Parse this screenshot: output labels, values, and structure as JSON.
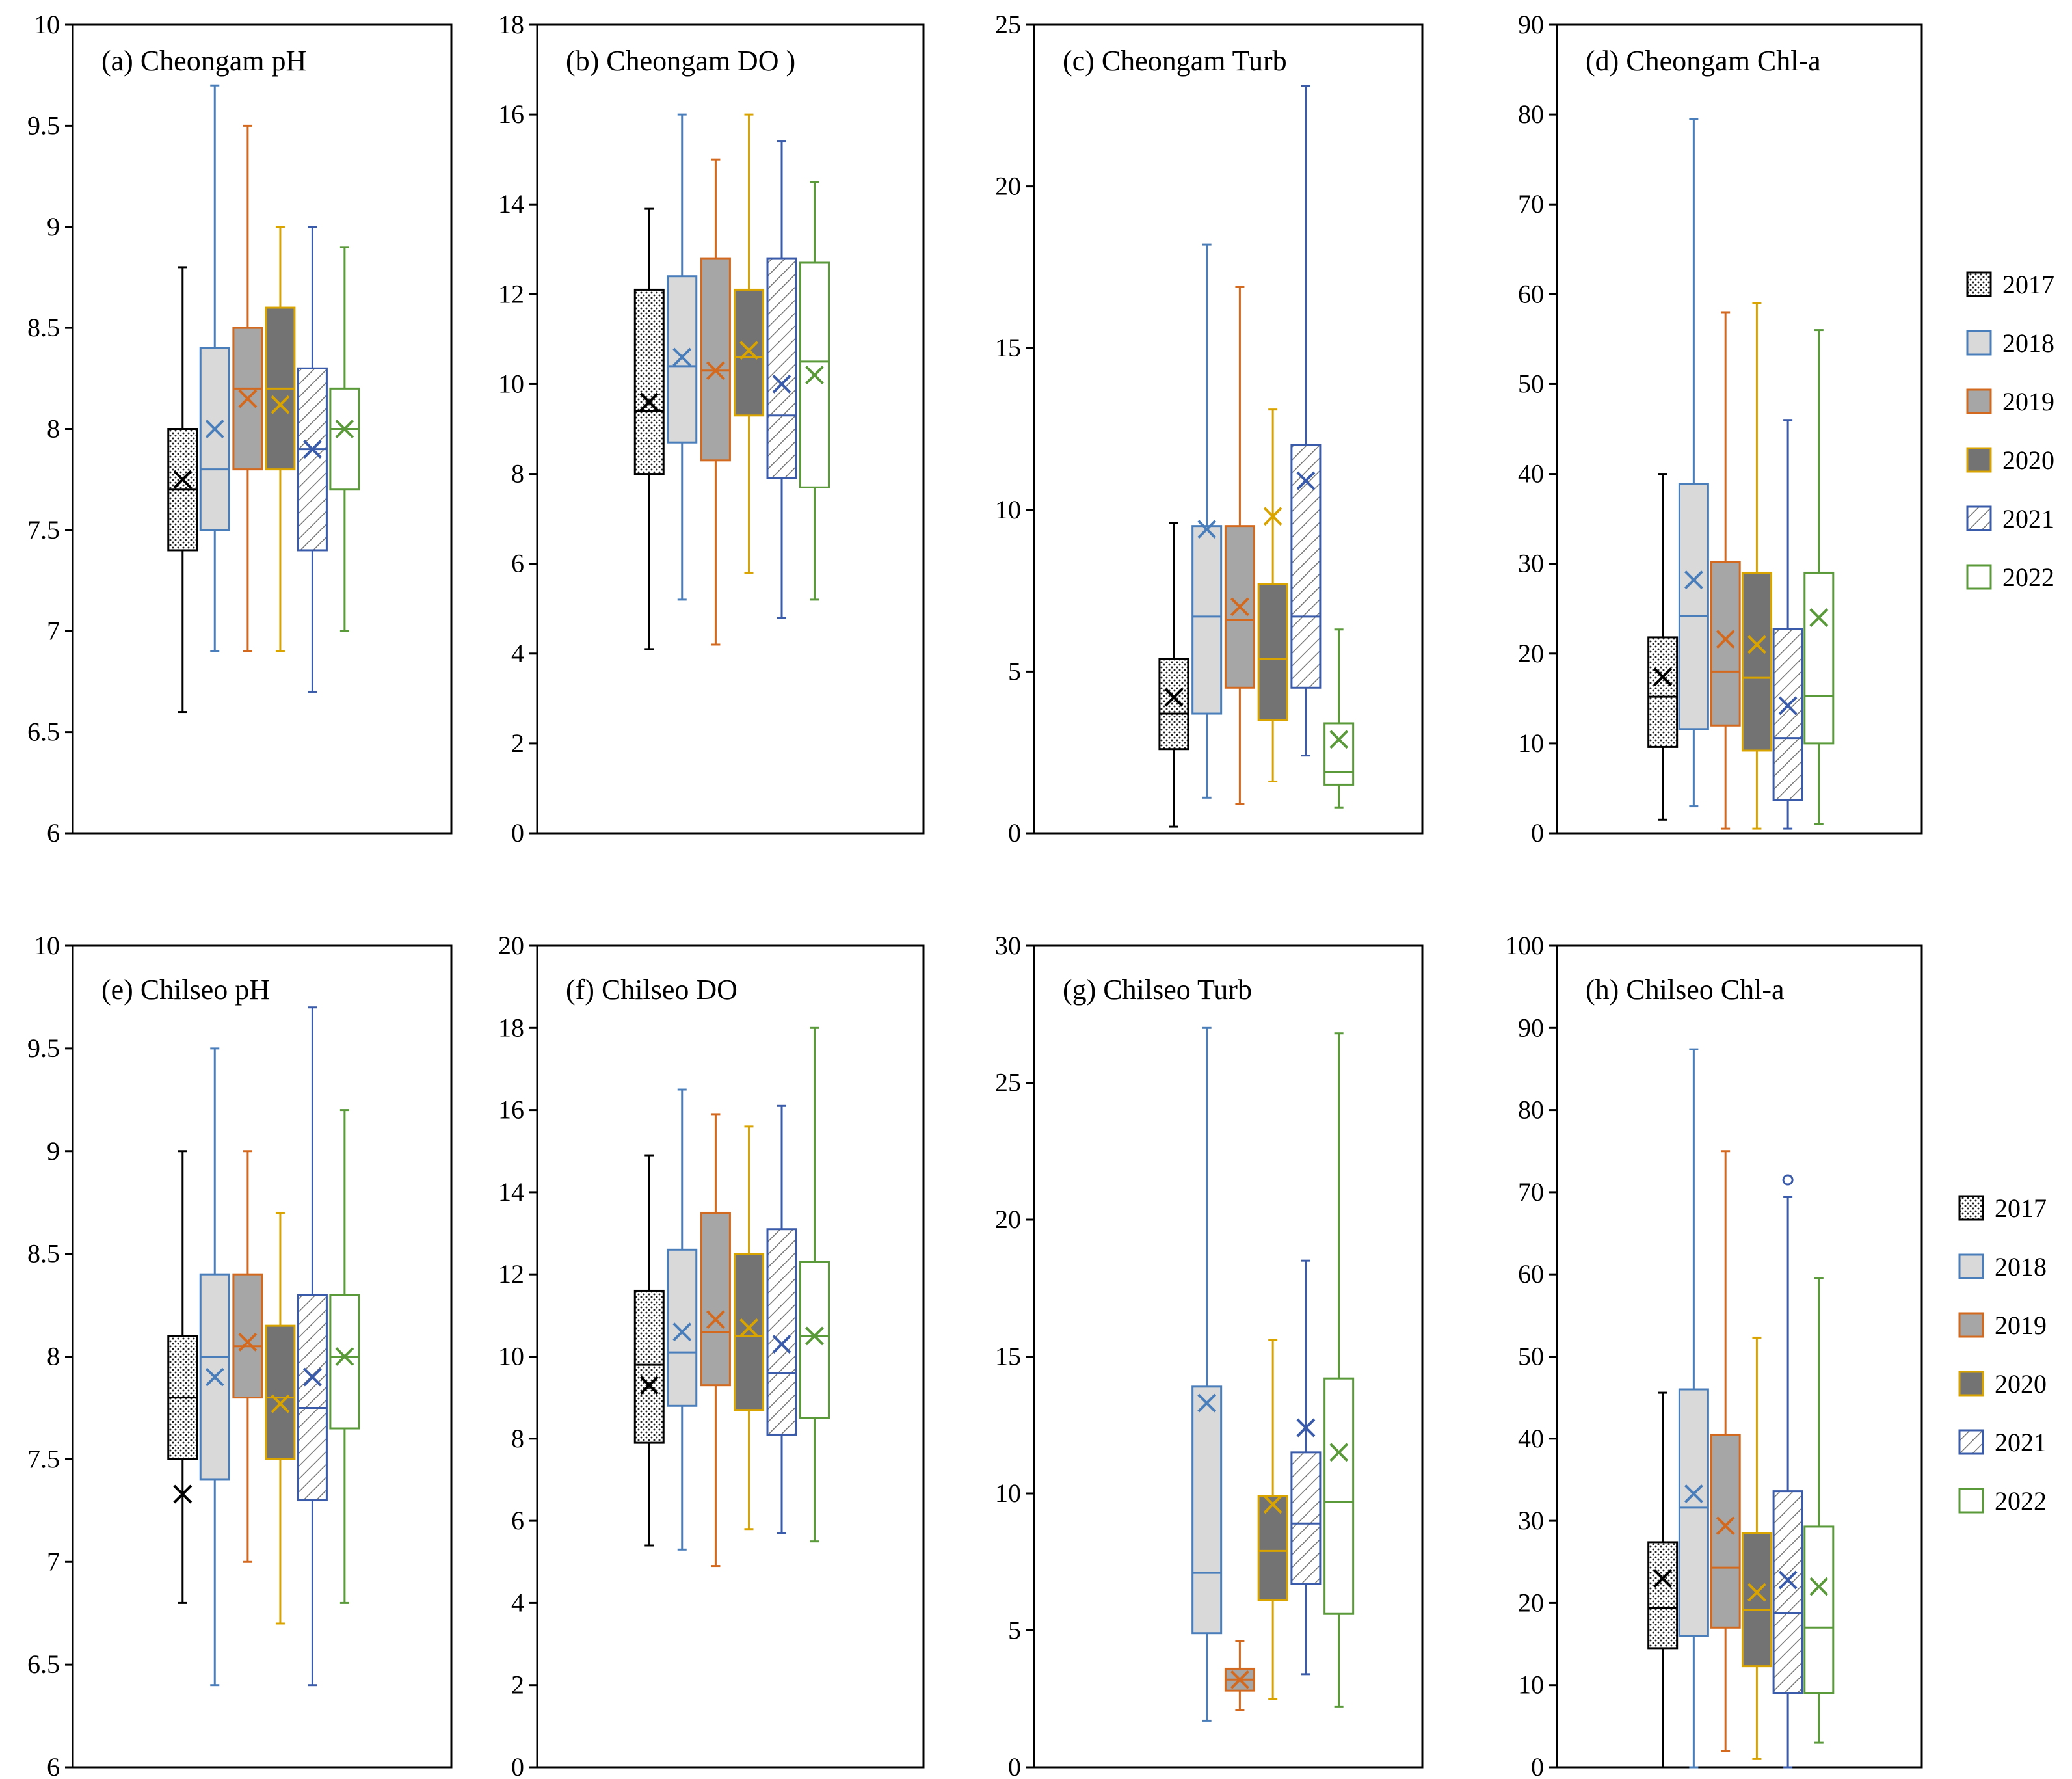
{
  "legend_years": [
    "2017",
    "2018",
    "2019",
    "2020",
    "2021",
    "2022"
  ],
  "series_colors": {
    "2017": "#000000",
    "2018": "#4A7EBB",
    "2019": "#D2691E",
    "2020": "#D9A300",
    "2021": "#3A5BA9",
    "2022": "#5A9A3A"
  },
  "series_fills": {
    "2017": "dots-dense",
    "2018": "#D9D9D9",
    "2019": "#A6A6A6",
    "2020": "#737373",
    "2021": "diagonal-hatch",
    "2022": "#FFFFFF"
  },
  "chart_data": [
    {
      "id": "a",
      "type": "boxplot",
      "title": "(a) Cheongam pH",
      "ylim": [
        6,
        10
      ],
      "yticks": [
        "6",
        "6.5",
        "7",
        "7.5",
        "8",
        "8.5",
        "9",
        "9.5",
        "10"
      ],
      "series": [
        {
          "name": "2017",
          "min": 6.6,
          "q1": 7.4,
          "median": 7.7,
          "q3": 8.0,
          "max": 8.8,
          "mean": 7.75
        },
        {
          "name": "2018",
          "min": 6.9,
          "q1": 7.5,
          "median": 7.8,
          "q3": 8.4,
          "max": 9.7,
          "mean": 8.0
        },
        {
          "name": "2019",
          "min": 6.9,
          "q1": 7.8,
          "median": 8.2,
          "q3": 8.5,
          "max": 9.5,
          "mean": 8.15
        },
        {
          "name": "2020",
          "min": 6.9,
          "q1": 7.8,
          "median": 8.2,
          "q3": 8.6,
          "max": 9.0,
          "mean": 8.12
        },
        {
          "name": "2021",
          "min": 6.7,
          "q1": 7.4,
          "median": 7.9,
          "q3": 8.3,
          "max": 9.0,
          "mean": 7.9
        },
        {
          "name": "2022",
          "min": 7.0,
          "q1": 7.7,
          "median": 8.0,
          "q3": 8.2,
          "max": 8.9,
          "mean": 8.0
        }
      ]
    },
    {
      "id": "b",
      "type": "boxplot",
      "title": "(b) Cheongam DO )",
      "ylim": [
        0,
        18
      ],
      "yticks": [
        "0",
        "2",
        "4",
        "6",
        "8",
        "10",
        "12",
        "14",
        "16",
        "18"
      ],
      "series": [
        {
          "name": "2017",
          "min": 4.1,
          "q1": 8.0,
          "median": 9.4,
          "q3": 12.1,
          "max": 13.9,
          "mean": 9.6
        },
        {
          "name": "2018",
          "min": 5.2,
          "q1": 8.7,
          "median": 10.4,
          "q3": 12.4,
          "max": 16.0,
          "mean": 10.6
        },
        {
          "name": "2019",
          "min": 4.2,
          "q1": 8.3,
          "median": 10.3,
          "q3": 12.8,
          "max": 15.0,
          "mean": 10.3
        },
        {
          "name": "2020",
          "min": 5.8,
          "q1": 9.3,
          "median": 10.6,
          "q3": 12.1,
          "max": 16.0,
          "mean": 10.75
        },
        {
          "name": "2021",
          "min": 4.8,
          "q1": 7.9,
          "median": 9.3,
          "q3": 12.8,
          "max": 15.4,
          "mean": 10.0
        },
        {
          "name": "2022",
          "min": 5.2,
          "q1": 7.7,
          "median": 10.5,
          "q3": 12.7,
          "max": 14.5,
          "mean": 10.2
        }
      ]
    },
    {
      "id": "c",
      "type": "boxplot",
      "title": "(c) Cheongam Turb",
      "ylim": [
        0,
        25
      ],
      "yticks": [
        "0",
        "5",
        "10",
        "15",
        "20",
        "25"
      ],
      "series": [
        {
          "name": "2017",
          "min": 0.2,
          "q1": 2.6,
          "median": 3.7,
          "q3": 5.4,
          "max": 9.6,
          "mean": 4.2
        },
        {
          "name": "2018",
          "min": 1.1,
          "q1": 3.7,
          "median": 6.7,
          "q3": 9.5,
          "max": 18.2,
          "mean": 9.4
        },
        {
          "name": "2019",
          "min": 0.9,
          "q1": 4.5,
          "median": 6.6,
          "q3": 9.5,
          "max": 16.9,
          "mean": 7.0
        },
        {
          "name": "2020",
          "min": 1.6,
          "q1": 3.5,
          "median": 5.4,
          "q3": 7.7,
          "max": 13.1,
          "mean": 9.8
        },
        {
          "name": "2021",
          "min": 2.4,
          "q1": 4.5,
          "median": 6.7,
          "q3": 12.0,
          "max": 23.1,
          "mean": 10.9
        },
        {
          "name": "2022",
          "min": 0.8,
          "q1": 1.5,
          "median": 1.9,
          "q3": 3.4,
          "max": 6.3,
          "mean": 2.9
        }
      ]
    },
    {
      "id": "d",
      "type": "boxplot",
      "title": "(d) Cheongam Chl-a",
      "ylim": [
        0,
        90
      ],
      "yticks": [
        "0",
        "10",
        "20",
        "30",
        "40",
        "50",
        "60",
        "70",
        "80",
        "90"
      ],
      "series": [
        {
          "name": "2017",
          "min": 1.5,
          "q1": 9.6,
          "median": 15.2,
          "q3": 21.8,
          "max": 40.0,
          "mean": 17.4
        },
        {
          "name": "2018",
          "min": 3.0,
          "q1": 11.6,
          "median": 24.2,
          "q3": 38.9,
          "max": 79.5,
          "mean": 28.2
        },
        {
          "name": "2019",
          "min": 0.5,
          "q1": 12.0,
          "median": 18.0,
          "q3": 30.2,
          "max": 58.0,
          "mean": 21.6
        },
        {
          "name": "2020",
          "min": 0.5,
          "q1": 9.2,
          "median": 17.3,
          "q3": 29.0,
          "max": 59.0,
          "mean": 21.0
        },
        {
          "name": "2021",
          "min": 0.5,
          "q1": 3.7,
          "median": 10.6,
          "q3": 22.7,
          "max": 46.0,
          "mean": 14.2
        },
        {
          "name": "2022",
          "min": 1.0,
          "q1": 10.0,
          "median": 15.3,
          "q3": 29.0,
          "max": 56.0,
          "mean": 24.0
        }
      ]
    },
    {
      "id": "e",
      "type": "boxplot",
      "title": "(e) Chilseo pH",
      "ylim": [
        6,
        10
      ],
      "yticks": [
        "6",
        "6.5",
        "7",
        "7.5",
        "8",
        "8.5",
        "9",
        "9.5",
        "10"
      ],
      "series": [
        {
          "name": "2017",
          "min": 6.8,
          "q1": 7.5,
          "median": 7.8,
          "q3": 8.1,
          "max": 9.0,
          "mean": 7.33
        },
        {
          "name": "2018",
          "min": 6.4,
          "q1": 7.4,
          "median": 8.0,
          "q3": 8.4,
          "max": 9.5,
          "mean": 7.9
        },
        {
          "name": "2019",
          "min": 7.0,
          "q1": 7.8,
          "median": 8.05,
          "q3": 8.4,
          "max": 9.0,
          "mean": 8.07
        },
        {
          "name": "2020",
          "min": 6.7,
          "q1": 7.5,
          "median": 7.8,
          "q3": 8.15,
          "max": 8.7,
          "mean": 7.77
        },
        {
          "name": "2021",
          "min": 6.4,
          "q1": 7.3,
          "median": 7.75,
          "q3": 8.3,
          "max": 9.7,
          "mean": 7.9
        },
        {
          "name": "2022",
          "min": 6.8,
          "q1": 7.65,
          "median": 8.0,
          "q3": 8.3,
          "max": 9.2,
          "mean": 8.0
        }
      ]
    },
    {
      "id": "f",
      "type": "boxplot",
      "title": "(f) Chilseo DO",
      "ylim": [
        0,
        20
      ],
      "yticks": [
        "0",
        "2",
        "4",
        "6",
        "8",
        "10",
        "12",
        "14",
        "16",
        "18",
        "20"
      ],
      "series": [
        {
          "name": "2017",
          "min": 5.4,
          "q1": 7.9,
          "median": 9.8,
          "q3": 11.6,
          "max": 14.9,
          "mean": 9.3
        },
        {
          "name": "2018",
          "min": 5.3,
          "q1": 8.8,
          "median": 10.1,
          "q3": 12.6,
          "max": 16.5,
          "mean": 10.6
        },
        {
          "name": "2019",
          "min": 4.9,
          "q1": 9.3,
          "median": 10.6,
          "q3": 13.5,
          "max": 15.9,
          "mean": 10.9
        },
        {
          "name": "2020",
          "min": 5.8,
          "q1": 8.7,
          "median": 10.5,
          "q3": 12.5,
          "max": 15.6,
          "mean": 10.7
        },
        {
          "name": "2021",
          "min": 5.7,
          "q1": 8.1,
          "median": 9.6,
          "q3": 13.1,
          "max": 16.1,
          "mean": 10.3
        },
        {
          "name": "2022",
          "min": 5.5,
          "q1": 8.5,
          "median": 10.5,
          "q3": 12.3,
          "max": 18.0,
          "mean": 10.5
        }
      ]
    },
    {
      "id": "g",
      "type": "boxplot",
      "title": "(g) Chilseo Turb",
      "ylim": [
        0,
        30
      ],
      "yticks": [
        "0",
        "5",
        "10",
        "15",
        "20",
        "25",
        "30"
      ],
      "series": [
        {
          "name": "2017",
          "min": null,
          "q1": null,
          "median": null,
          "q3": null,
          "max": null,
          "mean": null
        },
        {
          "name": "2018",
          "min": 1.7,
          "q1": 4.9,
          "median": 7.1,
          "q3": 13.9,
          "max": 27.0,
          "mean": 13.3
        },
        {
          "name": "2019",
          "min": 2.1,
          "q1": 2.8,
          "median": 3.2,
          "q3": 3.6,
          "max": 4.6,
          "mean": 3.2
        },
        {
          "name": "2020",
          "min": 2.5,
          "q1": 6.1,
          "median": 7.9,
          "q3": 9.9,
          "max": 15.6,
          "mean": 9.6
        },
        {
          "name": "2021",
          "min": 3.4,
          "q1": 6.7,
          "median": 8.9,
          "q3": 11.5,
          "max": 18.5,
          "mean": 12.4
        },
        {
          "name": "2022",
          "min": 2.2,
          "q1": 5.6,
          "median": 9.7,
          "q3": 14.2,
          "max": 26.8,
          "mean": 11.5
        }
      ]
    },
    {
      "id": "h",
      "type": "boxplot",
      "title": "(h) Chilseo Chl-a",
      "ylim": [
        0,
        100
      ],
      "yticks": [
        "0",
        "10",
        "20",
        "30",
        "40",
        "50",
        "60",
        "70",
        "80",
        "90",
        "100"
      ],
      "series": [
        {
          "name": "2017",
          "min": 0.0,
          "q1": 14.5,
          "median": 19.4,
          "q3": 27.4,
          "max": 45.6,
          "mean": 23.0
        },
        {
          "name": "2018",
          "min": 0.0,
          "q1": 16.0,
          "median": 31.6,
          "q3": 46.0,
          "max": 87.4,
          "mean": 33.3
        },
        {
          "name": "2019",
          "min": 2.0,
          "q1": 17.0,
          "median": 24.3,
          "q3": 40.5,
          "max": 75.0,
          "mean": 29.4
        },
        {
          "name": "2020",
          "min": 1.0,
          "q1": 12.3,
          "median": 19.2,
          "q3": 28.5,
          "max": 52.3,
          "mean": 21.3
        },
        {
          "name": "2021",
          "min": 0.0,
          "q1": 9.0,
          "median": 18.8,
          "q3": 33.6,
          "max": 69.4,
          "mean": 22.8,
          "outliers": [
            71.5
          ]
        },
        {
          "name": "2022",
          "min": 3.0,
          "q1": 9.0,
          "median": 17.0,
          "q3": 29.3,
          "max": 59.5,
          "mean": 22.0
        }
      ]
    }
  ]
}
